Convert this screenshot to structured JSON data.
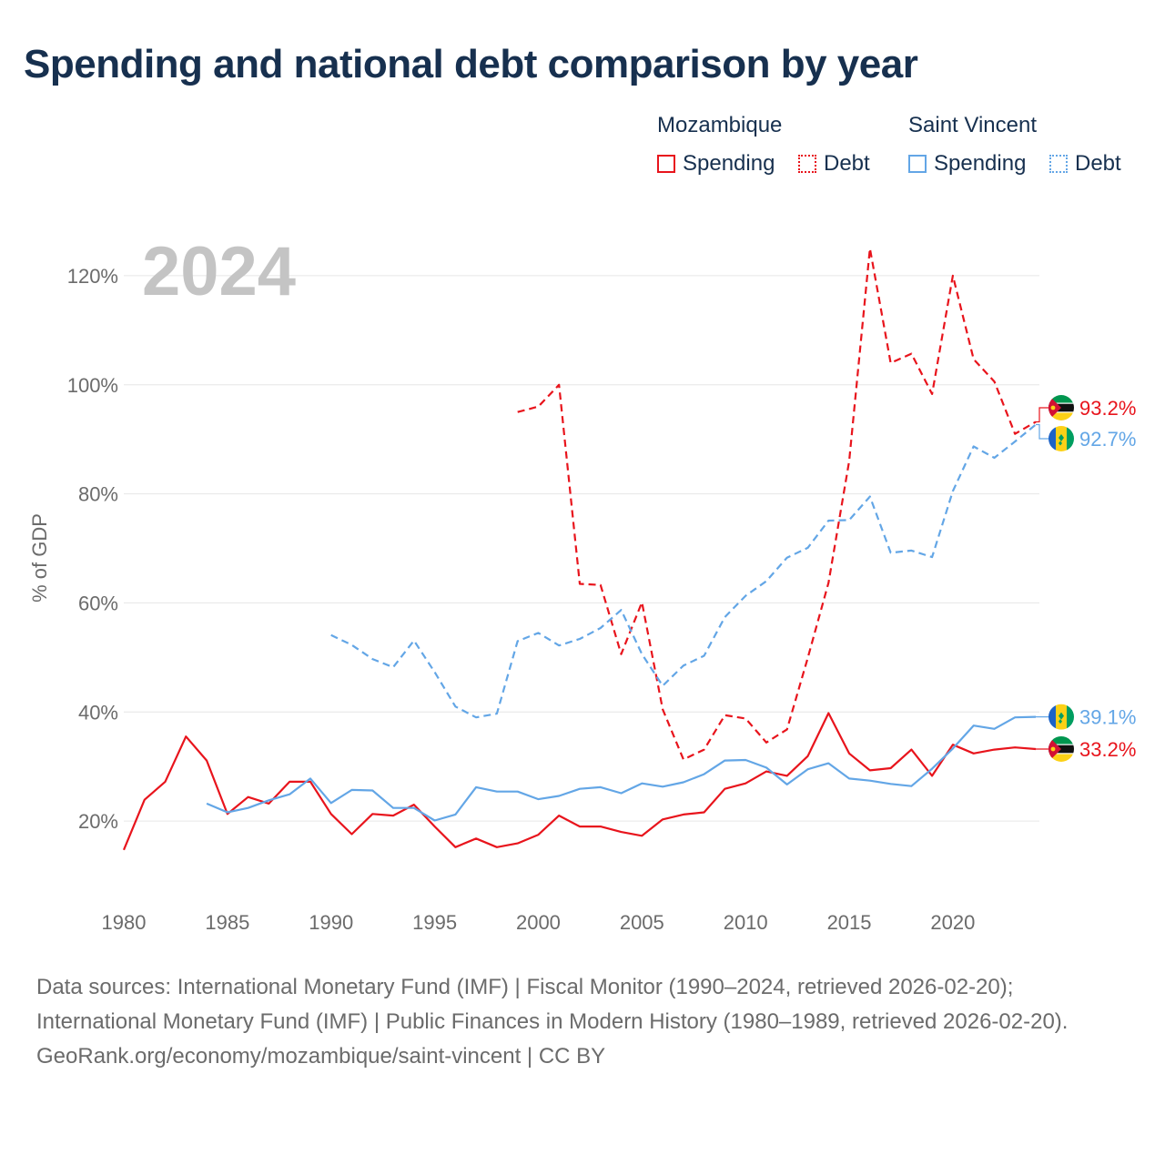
{
  "chart_data": {
    "type": "line",
    "title": "Spending and national debt comparison by year",
    "year_watermark": "2024",
    "ylabel": "% of GDP",
    "xlabel": "",
    "xlim": [
      1980,
      2024
    ],
    "ylim": [
      10,
      128
    ],
    "y_ticks": [
      20,
      40,
      60,
      80,
      100,
      120
    ],
    "y_tick_labels": [
      "20%",
      "40%",
      "60%",
      "80%",
      "100%",
      "120%"
    ],
    "x_ticks": [
      1980,
      1985,
      1990,
      1995,
      2000,
      2005,
      2010,
      2015,
      2020
    ],
    "x_tick_labels": [
      "1980",
      "1985",
      "1990",
      "1995",
      "2000",
      "2005",
      "2010",
      "2015",
      "2020"
    ],
    "legend": {
      "groups": [
        {
          "title": "Mozambique",
          "spending_label": "Spending",
          "debt_label": "Debt",
          "color": "#e8141c"
        },
        {
          "title": "Saint Vincent",
          "spending_label": "Spending",
          "debt_label": "Debt",
          "color": "#63a6e6"
        }
      ],
      "placement": "top-right"
    },
    "series": [
      {
        "name": "Mozambique Spending",
        "country": "Mozambique",
        "color": "#e8141c",
        "style": "solid",
        "start_year": 1980,
        "values": [
          14.7,
          23.9,
          27.2,
          35.5,
          31.1,
          21.3,
          24.4,
          23.2,
          27.2,
          27.2,
          21.3,
          17.6,
          21.3,
          21.0,
          23.0,
          19.0,
          15.2,
          16.8,
          15.2,
          15.9,
          17.5,
          21.0,
          19.0,
          19.0,
          18.0,
          17.3,
          20.3,
          21.2,
          21.6,
          25.9,
          26.9,
          29.1,
          28.3,
          31.9,
          39.8,
          32.4,
          29.3,
          29.7,
          33.1,
          28.3,
          34.0,
          32.4,
          33.1,
          33.5,
          33.2
        ],
        "end_label": "33.2%"
      },
      {
        "name": "Mozambique Debt",
        "country": "Mozambique",
        "color": "#e8141c",
        "style": "dashed",
        "start_year": 1999,
        "values": [
          95.0,
          96.0,
          100.0,
          63.5,
          63.3,
          50.6,
          60.1,
          40.5,
          31.3,
          33.1,
          39.4,
          38.8,
          34.4,
          36.8,
          49.9,
          63.7,
          86.0,
          125.0,
          104.0,
          105.7,
          98.3,
          120.0,
          104.7,
          100.6,
          91.0,
          93.2
        ],
        "end_label": "93.2%"
      },
      {
        "name": "Saint Vincent Spending",
        "country": "Saint Vincent",
        "color": "#63a6e6",
        "style": "solid",
        "start_year": 1984,
        "values": [
          23.2,
          21.6,
          22.4,
          23.8,
          24.9,
          27.8,
          23.3,
          25.7,
          25.6,
          22.4,
          22.4,
          20.1,
          21.2,
          26.2,
          25.4,
          25.4,
          24.0,
          24.6,
          25.9,
          26.2,
          25.1,
          26.9,
          26.3,
          27.1,
          28.6,
          31.1,
          31.2,
          29.8,
          26.7,
          29.5,
          30.6,
          27.8,
          27.4,
          26.8,
          26.4,
          29.6,
          33.3,
          37.5,
          36.9,
          39.0,
          39.1
        ],
        "end_label": "39.1%"
      },
      {
        "name": "Saint Vincent Debt",
        "country": "Saint Vincent",
        "color": "#63a6e6",
        "style": "dashed",
        "start_year": 1990,
        "values": [
          54.1,
          52.3,
          49.7,
          48.2,
          53.1,
          47.3,
          41.0,
          39.0,
          39.7,
          53.0,
          54.5,
          52.2,
          53.4,
          55.4,
          58.7,
          50.6,
          44.8,
          48.5,
          50.3,
          57.4,
          61.3,
          64.0,
          68.3,
          70.1,
          75.1,
          75.2,
          79.5,
          69.2,
          69.6,
          68.4,
          80.5,
          88.7,
          86.6,
          89.6,
          92.7
        ],
        "end_label": "92.7%"
      }
    ]
  },
  "footer": {
    "sources": "Data sources: International Monetary Fund (IMF) | Fiscal Monitor (1990–2024, retrieved 2026-02-20); International Monetary Fund (IMF) | Public Finances in Modern History (1980–1989, retrieved 2026-02-20).",
    "credit": "GeoRank.org/economy/mozambique/saint-vincent | CC BY"
  }
}
